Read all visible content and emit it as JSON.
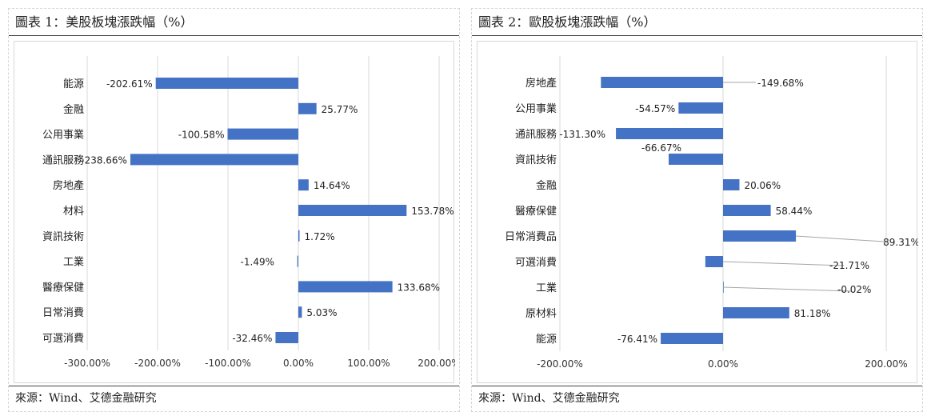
{
  "chart_data": [
    {
      "type": "bar",
      "orientation": "horizontal",
      "title": "圖表 1：美股板塊漲跌幅（%）",
      "categories": [
        "能源",
        "金融",
        "公用事業",
        "通訊服務",
        "房地產",
        "材料",
        "資訊技術",
        "工業",
        "醫療保健",
        "日常消費",
        "可選消費"
      ],
      "values": [
        -202.61,
        25.77,
        -100.58,
        -238.66,
        14.64,
        153.78,
        1.72,
        -1.49,
        133.68,
        5.03,
        -32.46
      ],
      "value_labels": [
        "-202.61%",
        "25.77%",
        "-100.58%",
        "-238.66%",
        "14.64%",
        "153.78%",
        "1.72%",
        "-1.49%",
        "133.68%",
        "5.03%",
        "-32.46%"
      ],
      "xlim": [
        -300,
        200
      ],
      "ticks": [
        -300,
        -200,
        -100,
        0,
        100,
        200
      ],
      "tick_labels": [
        "-300.00%",
        "-200.00%",
        "-100.00%",
        "0.00%",
        "100.00%",
        "200.00%"
      ],
      "grid": "vertical",
      "bar_color": "#4472C4",
      "source": "來源：Wind、艾德金融研究"
    },
    {
      "type": "bar",
      "orientation": "horizontal",
      "title": "圖表 2：歐股板塊漲跌幅（%）",
      "categories": [
        "房地產",
        "公用事業",
        "通訊服務",
        "資訊技術",
        "金融",
        "醫療保健",
        "日常消費品",
        "可選消費",
        "工業",
        "原材料",
        "能源"
      ],
      "values": [
        -149.68,
        -54.57,
        -131.3,
        -66.67,
        20.06,
        58.44,
        89.31,
        -21.71,
        -0.02,
        81.18,
        -76.41
      ],
      "value_labels": [
        "-149.68%",
        "-54.57%",
        "-131.30%",
        "-66.67%",
        "20.06%",
        "58.44%",
        "89.31%",
        "-21.71%",
        "-0.02%",
        "81.18%",
        "-76.41%"
      ],
      "xlim": [
        -200,
        200
      ],
      "ticks": [
        -200,
        0,
        200
      ],
      "tick_labels": [
        "-200.00%",
        "0.00%",
        "200.00%"
      ],
      "grid": "vertical",
      "bar_color": "#4472C4",
      "source": "來源：Wind、艾德金融研究"
    }
  ]
}
